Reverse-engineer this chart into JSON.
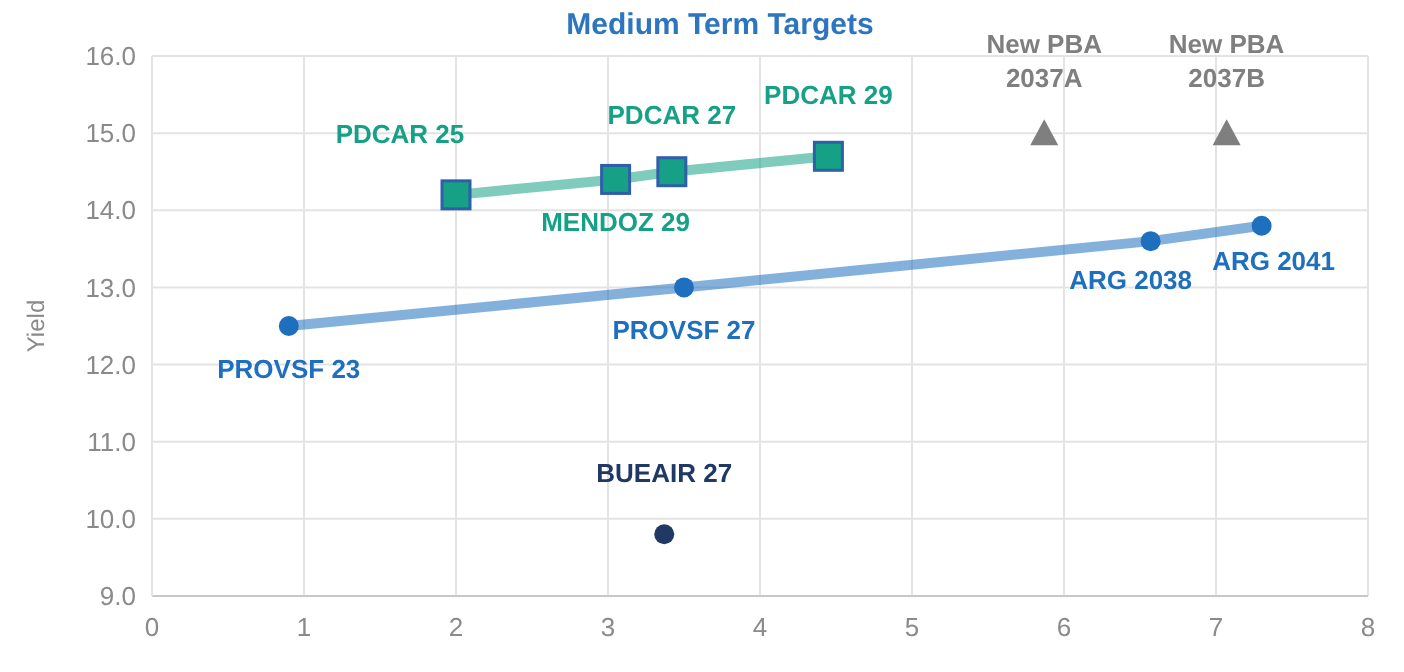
{
  "chart_data": {
    "type": "line",
    "title": "Medium Term Targets",
    "ylabel": "Yield",
    "xlim": [
      0,
      8
    ],
    "xticks": [
      0,
      1,
      2,
      3,
      4,
      5,
      6,
      7,
      8
    ],
    "ylim": [
      9,
      16
    ],
    "yticks": [
      {
        "value": 9,
        "label": "9.0"
      },
      {
        "value": 10,
        "label": "10.0"
      },
      {
        "value": 11,
        "label": "11.0"
      },
      {
        "value": 12,
        "label": "12.0"
      },
      {
        "value": 13,
        "label": "13.0"
      },
      {
        "value": 14,
        "label": "14.0"
      },
      {
        "value": 15,
        "label": "15.0"
      },
      {
        "value": 16,
        "label": "16.0"
      }
    ],
    "grid": true,
    "series": [
      {
        "color": "#16a085",
        "marker": "square",
        "x": [
          2.0,
          3.05,
          3.42,
          4.45
        ],
        "values": [
          14.2,
          14.4,
          14.5,
          14.7
        ]
      },
      {
        "color": "#1f6fbf",
        "marker": "circle",
        "x": [
          0.9,
          3.5,
          6.57,
          7.3
        ],
        "values": [
          12.5,
          13.0,
          13.6,
          13.8
        ]
      },
      {
        "type": "scatter",
        "color": "#1f3864",
        "marker": "circle",
        "x": [
          3.37
        ],
        "values": [
          9.8
        ]
      },
      {
        "type": "scatter",
        "color": "#7f7f7f",
        "marker": "triangle",
        "x": [
          5.87,
          7.07
        ],
        "values": [
          15.0,
          15.0
        ]
      }
    ],
    "annotations": [
      {
        "text": "PDCAR 25",
        "x": 2.0,
        "y": 14.2
      },
      {
        "text": "MENDOZ 29",
        "x": 3.05,
        "y": 14.4
      },
      {
        "text": "PDCAR 27",
        "x": 3.42,
        "y": 14.5
      },
      {
        "text": "PDCAR 29",
        "x": 4.45,
        "y": 14.7
      },
      {
        "text": "PROVSF 23",
        "x": 0.9,
        "y": 12.5
      },
      {
        "text": "PROVSF 27",
        "x": 3.5,
        "y": 13.0
      },
      {
        "text": "ARG 2038",
        "x": 6.57,
        "y": 13.6
      },
      {
        "text": "ARG 2041",
        "x": 7.3,
        "y": 13.8
      },
      {
        "text": "BUEAIR 27",
        "x": 3.37,
        "y": 9.8
      },
      {
        "text": "New PBA\n2037A",
        "x": 5.87,
        "y": 15.0
      },
      {
        "text": "New PBA\n2037B",
        "x": 7.07,
        "y": 15.0
      }
    ]
  }
}
